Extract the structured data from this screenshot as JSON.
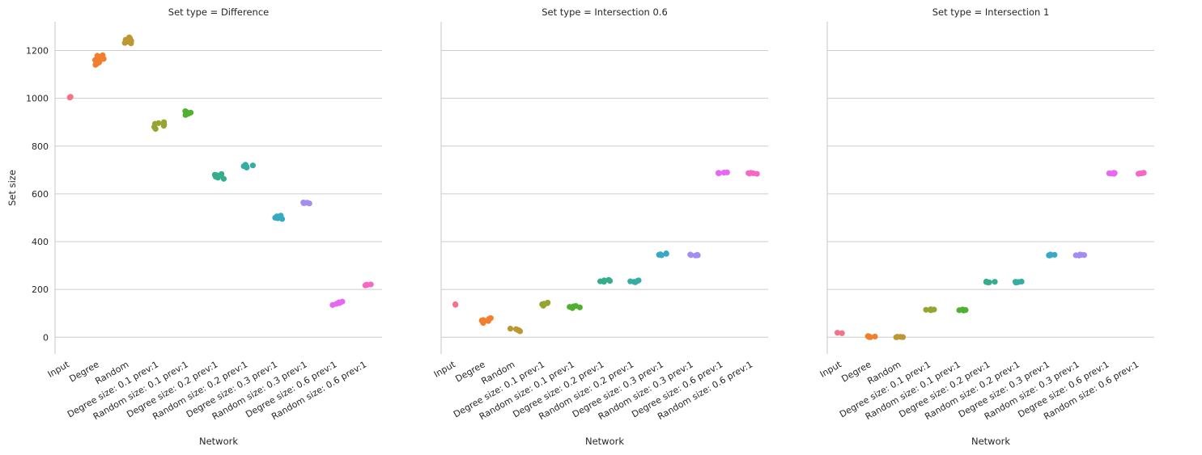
{
  "chart_data": {
    "type": "scatter",
    "kind": "strip plot (faceted)",
    "xlabel": "Network",
    "ylabel": "Set size",
    "ylim": [
      -70,
      1320
    ],
    "yticks": [
      0,
      200,
      400,
      600,
      800,
      1000,
      1200
    ],
    "grid": "horizontal",
    "categories": [
      "Input",
      "Degree",
      "Random",
      "Degree size: 0.1 prev:1",
      "Random size: 0.1 prev:1",
      "Degree size: 0.2 prev:1",
      "Random size: 0.2 prev:1",
      "Degree size: 0.3 prev:1",
      "Random size: 0.3 prev:1",
      "Degree size: 0.6 prev:1",
      "Random size: 0.6 prev:1"
    ],
    "colors": [
      "#f77189",
      "#f17f2e",
      "#bb9832",
      "#97a431",
      "#50b131",
      "#35ad8d",
      "#36ada4",
      "#38a9c5",
      "#a48cf4",
      "#e866f4",
      "#f668c2"
    ],
    "facets": [
      {
        "title": "Set type = Difference",
        "points": [
          [
            1003,
            1006
          ],
          [
            1140,
            1145,
            1150,
            1155,
            1160,
            1165,
            1170,
            1175,
            1178,
            1180
          ],
          [
            1230,
            1232,
            1235,
            1238,
            1240,
            1245,
            1250,
            1255
          ],
          [
            872,
            880,
            885,
            890,
            893,
            896,
            900
          ],
          [
            930,
            935,
            938,
            940,
            943,
            946
          ],
          [
            663,
            668,
            672,
            675,
            678,
            680,
            683
          ],
          [
            710,
            713,
            716,
            719,
            722
          ],
          [
            495,
            498,
            500,
            503,
            506,
            509
          ],
          [
            560,
            561,
            562,
            563,
            564
          ],
          [
            135,
            140,
            143,
            146,
            149
          ],
          [
            217,
            218,
            219,
            220,
            221
          ]
        ]
      },
      {
        "title": "Set type = Intersection 0.6",
        "points": [
          [
            136,
            138
          ],
          [
            60,
            65,
            68,
            70,
            72,
            75,
            78,
            80
          ],
          [
            25,
            28,
            30,
            32,
            34,
            36
          ],
          [
            132,
            135,
            138,
            140,
            142,
            145
          ],
          [
            122,
            125,
            127,
            129,
            131
          ],
          [
            232,
            234,
            236,
            238,
            240
          ],
          [
            230,
            232,
            234,
            236,
            238
          ],
          [
            343,
            345,
            347,
            349,
            351
          ],
          [
            342,
            343,
            344,
            345,
            346
          ],
          [
            686,
            687,
            688,
            689,
            690
          ],
          [
            684,
            685,
            686,
            687,
            688
          ]
        ]
      },
      {
        "title": "Set type = Intersection 1",
        "points": [
          [
            17,
            19
          ],
          [
            0,
            1,
            2,
            3,
            4,
            5
          ],
          [
            0,
            0.5,
            1,
            1.5,
            2
          ],
          [
            113,
            114,
            115,
            116,
            117
          ],
          [
            112,
            113,
            114,
            115,
            116
          ],
          [
            229,
            230,
            231,
            232,
            233
          ],
          [
            229,
            230,
            231,
            232,
            233
          ],
          [
            342,
            343,
            344,
            345,
            346
          ],
          [
            342,
            343,
            344,
            345,
            346
          ],
          [
            684,
            685,
            686,
            687,
            688
          ],
          [
            684,
            685,
            686,
            687,
            688
          ]
        ]
      }
    ]
  }
}
